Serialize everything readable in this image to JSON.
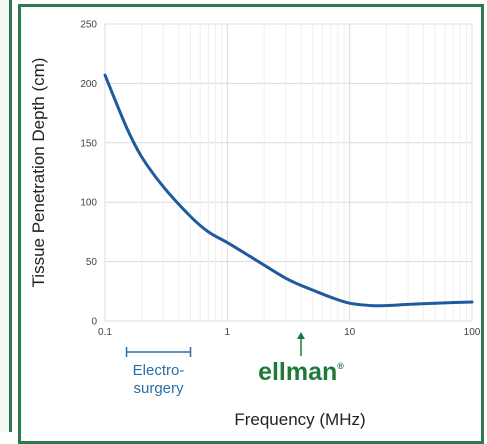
{
  "chart_data": {
    "type": "line",
    "xscale": "log",
    "xlim": [
      0.1,
      100
    ],
    "ylim": [
      0,
      250
    ],
    "x_ticks": [
      0.1,
      1,
      10,
      100
    ],
    "x_tick_labels": [
      "0.1",
      "1",
      "10",
      "100"
    ],
    "y_ticks": [
      0,
      50,
      100,
      150,
      200,
      250
    ],
    "y_tick_labels": [
      "0",
      "50",
      "100",
      "150",
      "200",
      "250"
    ],
    "xlabel": "Frequency (MHz)",
    "ylabel": "Tissue Penetration Depth (cm)",
    "grid": true,
    "series": [
      {
        "x": [
          0.1,
          0.15,
          0.2,
          0.3,
          0.5,
          0.7,
          1,
          1.5,
          2,
          3,
          4,
          5,
          7,
          10,
          15,
          20,
          30,
          50,
          100
        ],
        "y": [
          207,
          163,
          138,
          113,
          88,
          75,
          66,
          55,
          47,
          36,
          30,
          26,
          20,
          15,
          13,
          13,
          14,
          15,
          16
        ]
      }
    ],
    "annotations": {
      "electrosurgery_range": [
        0.15,
        0.5
      ],
      "electrosurgery_lines": [
        "Electro-",
        "surgery"
      ],
      "brand_x": 4,
      "brand_text": "ellman",
      "brand_mark": "®"
    }
  },
  "colors": {
    "frame": "#2e7a4e",
    "curve": "#1f5a9e",
    "grid": "#dcdcdc",
    "annotation": "#2a6fa6",
    "brand": "#1f7a3a"
  }
}
